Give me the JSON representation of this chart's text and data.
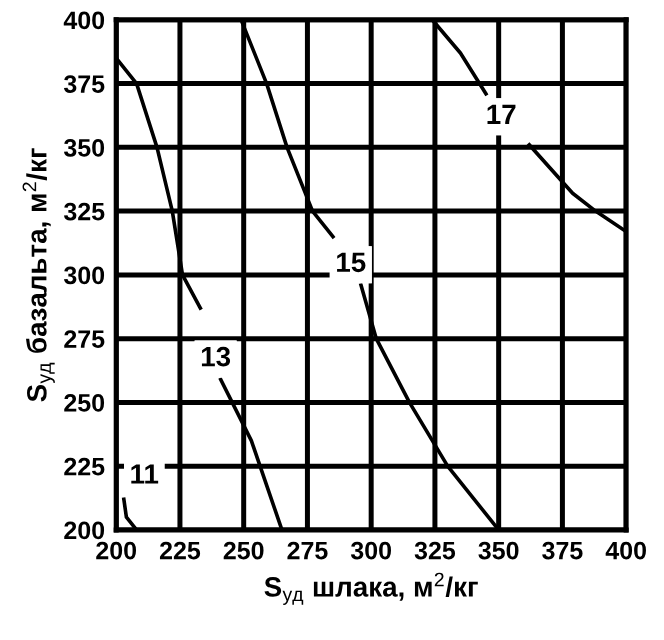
{
  "chart_data": {
    "type": "line",
    "xlabel": "S$_{уд}$ шлака, м$^{2}$/кг",
    "ylabel": "S$_{уд}$ базальта, м$^{2}$/кг",
    "series": [
      {
        "color": "#000000",
        "x": [
          200,
          208,
          216,
          222,
          226,
          233,
          237,
          241,
          253,
          265
        ],
        "values": [
          385,
          375,
          350,
          325,
          300,
          287,
          null,
          259,
          235,
          200
        ]
      },
      {
        "color": "#000000",
        "x": [
          249,
          259,
          267,
          277,
          285,
          290,
          296,
          302,
          315,
          330,
          350
        ],
        "values": [
          400,
          375,
          350,
          325,
          315,
          null,
          296,
          275,
          250,
          225,
          200
        ]
      },
      {
        "color": "#000000",
        "x": [
          324,
          335,
          345,
          352,
          362,
          379,
          388,
          400
        ],
        "values": [
          400,
          387,
          371,
          null,
          351,
          332,
          325,
          317
        ]
      },
      {
        "color": "#000000",
        "x": [
          203,
          204,
          208
        ],
        "values": [
          212,
          205,
          200
        ]
      }
    ],
    "annotations": [
      {
        "text": "11",
        "x": 211,
        "y": 221
      },
      {
        "text": "13",
        "x": 239,
        "y": 267
      },
      {
        "text": "15",
        "x": 292,
        "y": 304
      },
      {
        "text": "17",
        "x": 351,
        "y": 362
      }
    ],
    "xlim": [
      200,
      400
    ],
    "ylim": [
      200,
      400
    ],
    "xticks": [
      200,
      225,
      250,
      275,
      300,
      325,
      350,
      375,
      400
    ],
    "yticks": [
      200,
      225,
      250,
      275,
      300,
      325,
      350,
      375,
      400
    ],
    "grid": true,
    "line_style": "solid",
    "marker": "none"
  }
}
